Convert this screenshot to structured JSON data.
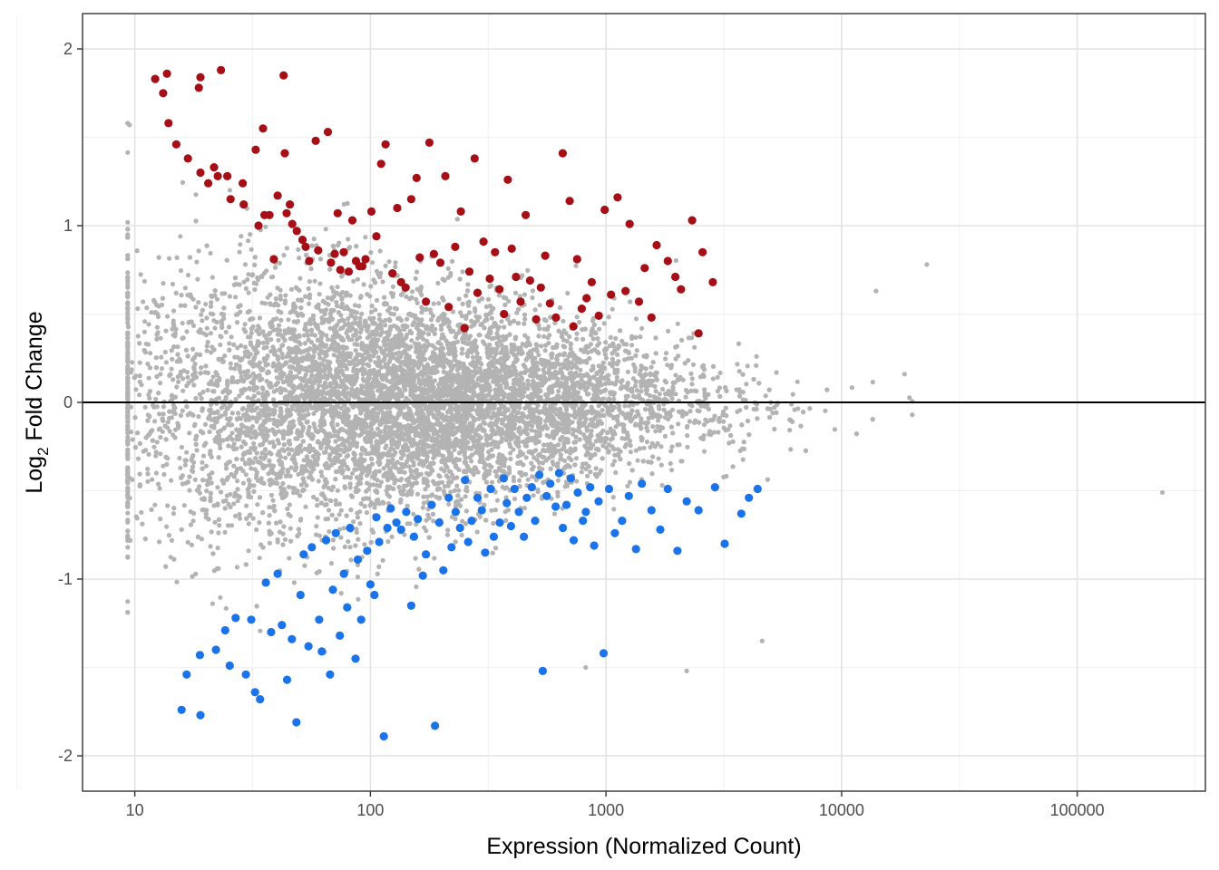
{
  "chart_data": {
    "type": "scatter",
    "title": "",
    "xlabel": "Expression (Normalized Count)",
    "ylabel_main": "Log",
    "ylabel_sub": "2",
    "ylabel_rest": " Fold Change",
    "xscale": "log10",
    "xlim": [
      6.0,
      350000
    ],
    "ylim": [
      -2.2,
      2.2
    ],
    "x_ticks": [
      10,
      100,
      1000,
      10000,
      100000
    ],
    "x_tick_labels": [
      "10",
      "100",
      "1000",
      "10000",
      "100000"
    ],
    "y_ticks": [
      -2,
      -1,
      0,
      1,
      2
    ],
    "y_tick_labels": [
      "-2",
      "-1",
      "0",
      "1",
      "2"
    ],
    "reference_line_y": 0,
    "grid": true,
    "legend": "none",
    "colors": {
      "not_significant": "#b3b3b3",
      "up": "#a50f15",
      "down": "#1a73e8",
      "reference": "#000000"
    },
    "series": [
      {
        "name": "up",
        "color": "#a50f15",
        "points": [
          [
            12.2,
            1.83
          ],
          [
            13.2,
            1.75
          ],
          [
            13.7,
            1.86
          ],
          [
            13.9,
            1.58
          ],
          [
            15.0,
            1.46
          ],
          [
            16.8,
            1.38
          ],
          [
            18.7,
            1.78
          ],
          [
            19.0,
            1.84
          ],
          [
            19.0,
            1.3
          ],
          [
            20.5,
            1.24
          ],
          [
            21.7,
            1.33
          ],
          [
            23.2,
            1.88
          ],
          [
            22.5,
            1.28
          ],
          [
            24.7,
            1.28
          ],
          [
            25.5,
            1.15
          ],
          [
            28.7,
            1.24
          ],
          [
            29.0,
            1.12
          ],
          [
            32.6,
            1.43
          ],
          [
            35.0,
            1.55
          ],
          [
            33.5,
            1.0
          ],
          [
            35.5,
            1.06
          ],
          [
            37.3,
            1.06
          ],
          [
            38.9,
            0.81
          ],
          [
            40.4,
            1.17
          ],
          [
            42.8,
            1.85
          ],
          [
            43.3,
            1.41
          ],
          [
            44.1,
            1.07
          ],
          [
            45.5,
            1.12
          ],
          [
            46.6,
            1.01
          ],
          [
            48.7,
            0.97
          ],
          [
            51.5,
            0.92
          ],
          [
            53.1,
            0.88
          ],
          [
            55.0,
            0.8
          ],
          [
            58.6,
            1.48
          ],
          [
            60.0,
            0.86
          ],
          [
            66.0,
            1.53
          ],
          [
            68.0,
            0.79
          ],
          [
            70.5,
            0.84
          ],
          [
            72.6,
            1.07
          ],
          [
            74.5,
            0.75
          ],
          [
            77.1,
            0.85
          ],
          [
            80.9,
            0.74
          ],
          [
            83.8,
            1.03
          ],
          [
            86.9,
            0.8
          ],
          [
            89.9,
            0.77
          ],
          [
            92.4,
            0.77
          ],
          [
            95.3,
            0.81
          ],
          [
            101.0,
            1.08
          ],
          [
            106.0,
            0.94
          ],
          [
            111.0,
            1.35
          ],
          [
            116.0,
            1.46
          ],
          [
            124.0,
            0.73
          ],
          [
            130.0,
            1.1
          ],
          [
            135.0,
            0.68
          ],
          [
            141.0,
            0.65
          ],
          [
            149.0,
            1.15
          ],
          [
            157.0,
            1.27
          ],
          [
            162.0,
            0.82
          ],
          [
            172.0,
            0.57
          ],
          [
            178.0,
            1.47
          ],
          [
            186.0,
            0.84
          ],
          [
            198.0,
            0.79
          ],
          [
            208.0,
            1.28
          ],
          [
            215.0,
            0.54
          ],
          [
            229.0,
            0.88
          ],
          [
            242.0,
            1.08
          ],
          [
            251.0,
            0.42
          ],
          [
            263.0,
            0.74
          ],
          [
            277.0,
            1.38
          ],
          [
            285.0,
            0.62
          ],
          [
            302.0,
            0.91
          ],
          [
            321.0,
            0.7
          ],
          [
            338.0,
            0.85
          ],
          [
            353.0,
            0.64
          ],
          [
            369.0,
            0.5
          ],
          [
            383.0,
            1.26
          ],
          [
            398.0,
            0.87
          ],
          [
            415.0,
            0.71
          ],
          [
            434.0,
            0.57
          ],
          [
            456.0,
            1.06
          ],
          [
            476.0,
            0.69
          ],
          [
            505.0,
            0.47
          ],
          [
            529.0,
            0.65
          ],
          [
            552.0,
            0.83
          ],
          [
            578.0,
            0.56
          ],
          [
            613.0,
            0.48
          ],
          [
            655.0,
            1.41
          ],
          [
            701.0,
            1.14
          ],
          [
            727.0,
            0.43
          ],
          [
            754.0,
            0.81
          ],
          [
            789.0,
            0.53
          ],
          [
            827.0,
            0.59
          ],
          [
            870.0,
            0.68
          ],
          [
            932.0,
            0.49
          ],
          [
            987.0,
            1.09
          ],
          [
            1050.0,
            0.61
          ],
          [
            1120.0,
            1.16
          ],
          [
            1210.0,
            0.63
          ],
          [
            1260.0,
            1.01
          ],
          [
            1380.0,
            0.57
          ],
          [
            1460.0,
            0.76
          ],
          [
            1560.0,
            0.48
          ],
          [
            1640.0,
            0.89
          ],
          [
            1830.0,
            0.8
          ],
          [
            1970.0,
            0.71
          ],
          [
            2080.0,
            0.64
          ],
          [
            2320.0,
            1.03
          ],
          [
            2470.0,
            0.39
          ],
          [
            2570.0,
            0.85
          ],
          [
            2840.0,
            0.68
          ]
        ]
      },
      {
        "name": "down",
        "color": "#1a73e8",
        "points": [
          [
            15.8,
            -1.74
          ],
          [
            16.6,
            -1.54
          ],
          [
            18.9,
            -1.43
          ],
          [
            19.0,
            -1.77
          ],
          [
            22.1,
            -1.4
          ],
          [
            24.2,
            -1.29
          ],
          [
            25.3,
            -1.49
          ],
          [
            26.8,
            -1.22
          ],
          [
            29.6,
            -1.54
          ],
          [
            31.2,
            -1.23
          ],
          [
            32.4,
            -1.64
          ],
          [
            34.0,
            -1.68
          ],
          [
            36.0,
            -1.02
          ],
          [
            37.9,
            -1.3
          ],
          [
            40.4,
            -0.97
          ],
          [
            42.1,
            -1.26
          ],
          [
            44.3,
            -1.57
          ],
          [
            46.4,
            -1.34
          ],
          [
            48.5,
            -1.81
          ],
          [
            50.5,
            -1.09
          ],
          [
            52.1,
            -0.86
          ],
          [
            54.6,
            -1.38
          ],
          [
            56.4,
            -0.82
          ],
          [
            60.6,
            -1.23
          ],
          [
            62.2,
            -1.41
          ],
          [
            64.9,
            -0.78
          ],
          [
            67.4,
            -1.54
          ],
          [
            69.3,
            -1.06
          ],
          [
            71.3,
            -0.74
          ],
          [
            74.2,
            -1.32
          ],
          [
            77.2,
            -0.97
          ],
          [
            79.7,
            -1.16
          ],
          [
            82.0,
            -0.71
          ],
          [
            86.5,
            -1.45
          ],
          [
            88.4,
            -0.89
          ],
          [
            91.4,
            -1.23
          ],
          [
            96.9,
            -0.84
          ],
          [
            100.0,
            -1.03
          ],
          [
            104.0,
            -1.09
          ],
          [
            106.0,
            -0.65
          ],
          [
            109.0,
            -0.79
          ],
          [
            114.0,
            -1.89
          ],
          [
            118.0,
            -0.71
          ],
          [
            122.0,
            -0.6
          ],
          [
            129.0,
            -0.68
          ],
          [
            135.0,
            -0.72
          ],
          [
            142.0,
            -0.62
          ],
          [
            149.0,
            -1.15
          ],
          [
            153.0,
            -0.76
          ],
          [
            159.0,
            -0.66
          ],
          [
            167.0,
            -0.98
          ],
          [
            172.0,
            -0.86
          ],
          [
            182.0,
            -0.58
          ],
          [
            188.0,
            -1.83
          ],
          [
            196.0,
            -0.68
          ],
          [
            204.0,
            -0.95
          ],
          [
            215.0,
            -0.54
          ],
          [
            221.0,
            -0.82
          ],
          [
            230.0,
            -0.62
          ],
          [
            240.0,
            -0.71
          ],
          [
            252.0,
            -0.44
          ],
          [
            260.0,
            -0.79
          ],
          [
            269.0,
            -0.67
          ],
          [
            285.0,
            -0.54
          ],
          [
            297.0,
            -0.61
          ],
          [
            307.0,
            -0.85
          ],
          [
            324.0,
            -0.49
          ],
          [
            334.0,
            -0.76
          ],
          [
            354.0,
            -0.68
          ],
          [
            368.0,
            -0.43
          ],
          [
            379.0,
            -0.57
          ],
          [
            395.0,
            -0.7
          ],
          [
            409.0,
            -0.49
          ],
          [
            427.0,
            -0.62
          ],
          [
            448.0,
            -0.76
          ],
          [
            461.0,
            -0.54
          ],
          [
            484.0,
            -0.48
          ],
          [
            500.0,
            -0.67
          ],
          [
            521.0,
            -0.41
          ],
          [
            539.0,
            -1.52
          ],
          [
            560.0,
            -0.53
          ],
          [
            580.0,
            -0.46
          ],
          [
            611.0,
            -0.59
          ],
          [
            632.0,
            -0.4
          ],
          [
            656.0,
            -0.71
          ],
          [
            680.0,
            -0.58
          ],
          [
            709.0,
            -0.43
          ],
          [
            729.0,
            -0.78
          ],
          [
            759.0,
            -0.51
          ],
          [
            798.0,
            -0.67
          ],
          [
            821.0,
            -0.62
          ],
          [
            857.0,
            -0.48
          ],
          [
            891.0,
            -0.81
          ],
          [
            930.0,
            -0.56
          ],
          [
            977.0,
            -1.42
          ],
          [
            1030.0,
            -0.49
          ],
          [
            1090.0,
            -0.74
          ],
          [
            1170.0,
            -0.67
          ],
          [
            1250.0,
            -0.53
          ],
          [
            1340.0,
            -0.83
          ],
          [
            1420.0,
            -0.46
          ],
          [
            1560.0,
            -0.61
          ],
          [
            1700.0,
            -0.72
          ],
          [
            1830.0,
            -0.49
          ],
          [
            2010.0,
            -0.84
          ],
          [
            2200.0,
            -0.56
          ],
          [
            2470.0,
            -0.61
          ],
          [
            2900.0,
            -0.48
          ],
          [
            3190.0,
            -0.8
          ],
          [
            3750.0,
            -0.63
          ],
          [
            4040.0,
            -0.54
          ],
          [
            4400.0,
            -0.49
          ]
        ]
      }
    ],
    "background_points": {
      "name": "not significant",
      "color": "#b3b3b3",
      "count": 9000,
      "description_for_generator": "dense grey cloud centered near 0; spread widest at low counts, narrowing as expression increases"
    }
  }
}
